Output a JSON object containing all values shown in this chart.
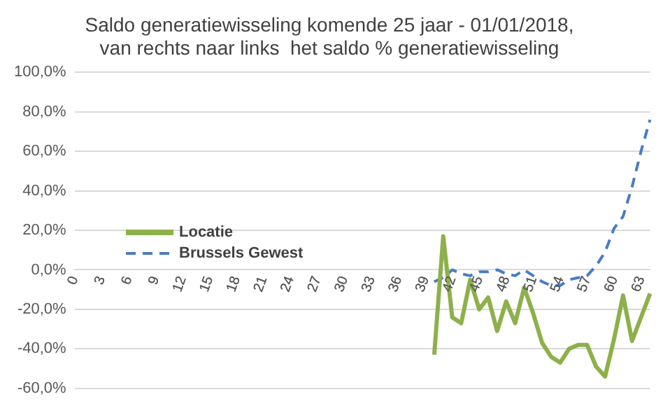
{
  "chart_data": {
    "type": "line",
    "title": [
      "Saldo generatiewisseling komende 25 jaar - 01/01/2018,",
      "van rechts naar links  het saldo % generatiewisseling"
    ],
    "categories": [
      "0",
      null,
      null,
      "3",
      null,
      null,
      "6",
      null,
      null,
      "9",
      null,
      null,
      "12",
      null,
      null,
      "15",
      null,
      null,
      "18",
      null,
      null,
      "21",
      null,
      null,
      "24",
      null,
      null,
      "27",
      null,
      null,
      "30",
      null,
      null,
      "33",
      null,
      null,
      "36",
      null,
      null,
      "39",
      null,
      null,
      "42",
      null,
      null,
      "45",
      null,
      null,
      "48",
      null,
      null,
      "51",
      null,
      null,
      "54",
      null,
      null,
      "57",
      null,
      null,
      "60",
      null,
      null,
      "63",
      null
    ],
    "series": [
      {
        "name": "Locatie",
        "color": "#8db04a",
        "line_style": "solid",
        "values": [
          null,
          null,
          null,
          null,
          null,
          null,
          null,
          null,
          null,
          null,
          null,
          null,
          null,
          null,
          null,
          null,
          null,
          null,
          null,
          null,
          null,
          null,
          null,
          null,
          null,
          null,
          null,
          null,
          null,
          null,
          null,
          null,
          null,
          null,
          null,
          null,
          null,
          null,
          null,
          null,
          -43,
          17,
          -24,
          -27,
          -5,
          -20,
          -14,
          -31,
          -16,
          -27,
          -9,
          -22,
          -37,
          -44,
          -47,
          -40,
          -38,
          -38,
          -49,
          -54,
          -35,
          -13,
          -36,
          -24,
          -12
        ]
      },
      {
        "name": "Brussels Gewest",
        "color": "#4a7cc4",
        "line_style": "dashed",
        "values": [
          null,
          null,
          null,
          null,
          null,
          null,
          null,
          null,
          null,
          null,
          null,
          null,
          null,
          null,
          null,
          null,
          null,
          null,
          null,
          null,
          null,
          null,
          null,
          null,
          null,
          null,
          null,
          null,
          null,
          null,
          null,
          null,
          null,
          null,
          null,
          null,
          null,
          null,
          null,
          null,
          -6,
          -4,
          0,
          -2,
          -3,
          -1,
          -1,
          0,
          -2,
          -3,
          0,
          -3,
          -6,
          -8,
          -8,
          -5,
          -4,
          -3,
          2,
          9,
          21,
          27,
          42,
          60,
          76
        ]
      }
    ],
    "ylim": [
      -60,
      100
    ],
    "yticks": [
      {
        "value": -60,
        "label": "-60,0%"
      },
      {
        "value": -40,
        "label": "-40,0%"
      },
      {
        "value": -20,
        "label": "-20,0%"
      },
      {
        "value": 0,
        "label": "0,0%"
      },
      {
        "value": 20,
        "label": "20,0%"
      },
      {
        "value": 40,
        "label": "40,0%"
      },
      {
        "value": 60,
        "label": "60,0%"
      },
      {
        "value": 80,
        "label": "80,0%"
      },
      {
        "value": 100,
        "label": "100,0%"
      }
    ],
    "grid": "y",
    "legend": "left",
    "marker": "none"
  }
}
